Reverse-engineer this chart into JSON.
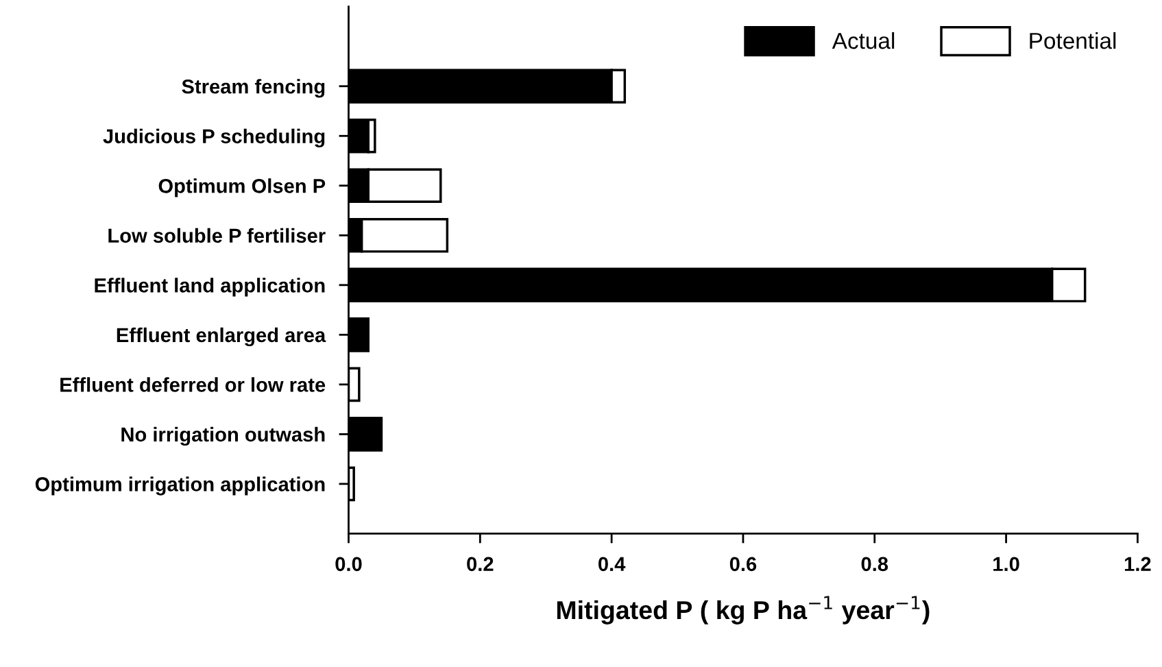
{
  "chart_data": {
    "type": "bar",
    "orientation": "horizontal",
    "stacked": true,
    "categories": [
      "Stream fencing",
      "Judicious P scheduling",
      "Optimum Olsen P",
      "Low soluble P fertiliser",
      "Effluent land application",
      "Effluent enlarged area",
      "Effluent deferred or low rate",
      "No irrigation outwash",
      "Optimum irrigation application"
    ],
    "series": [
      {
        "name": "Actual",
        "color": "#000000",
        "values": [
          0.4,
          0.03,
          0.03,
          0.02,
          1.07,
          0.03,
          null,
          0.05,
          null
        ]
      },
      {
        "name": "Potential",
        "color": "#ffffff",
        "values": [
          0.02,
          0.01,
          0.11,
          0.13,
          0.05,
          null,
          0.016,
          null,
          0.008
        ]
      }
    ],
    "xlabel": "Mitigated P ( kg P ha$^{−1}$ year$^{−1}$)",
    "xlim": [
      0,
      1.2
    ],
    "xticks": [
      {
        "value": 0,
        "label": "0.0"
      },
      {
        "value": 0.2,
        "label": "0.2"
      },
      {
        "value": 0.4,
        "label": "0.4"
      },
      {
        "value": 0.6,
        "label": "0.6"
      },
      {
        "value": 0.8,
        "label": "0.8"
      },
      {
        "value": 1.0,
        "label": "1.0"
      },
      {
        "value": 1.2,
        "label": "1.2"
      }
    ],
    "legend": "top right",
    "grid": false
  }
}
